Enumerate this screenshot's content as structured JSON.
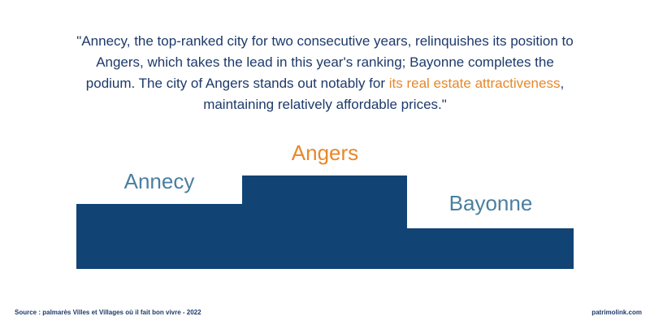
{
  "quote": {
    "lines": [
      [
        {
          "text": "\"Annecy, the top-ranked city for two consecutive years, relinquishes its position to"
        }
      ],
      [
        {
          "text": "Angers, which takes the lead in this year's ranking; Bayonne completes the"
        }
      ],
      [
        {
          "text": "podium. The city of Angers stands out notably for "
        },
        {
          "text": "its real estate attractiveness",
          "highlight": true
        },
        {
          "text": ","
        }
      ],
      [
        {
          "text": "maintaining relatively affordable prices.\""
        }
      ]
    ]
  },
  "podium": {
    "second": "Annecy",
    "first": "Angers",
    "third": "Bayonne"
  },
  "footer": {
    "source": "Source : palmarès Villes et Villages où il fait bon vivre - 2022",
    "site": "patrimolink.com"
  }
}
